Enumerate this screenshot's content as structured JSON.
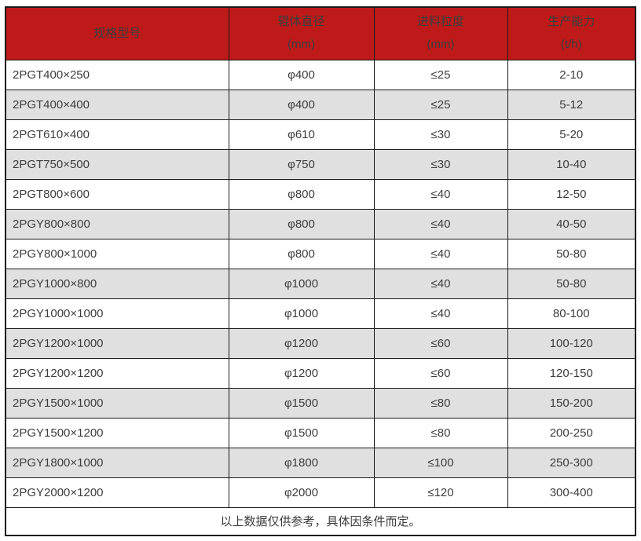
{
  "colors": {
    "header_bg": "#be1a1a",
    "header_text": "#ffffff",
    "stripe_bg": "#e0e0e0",
    "row_bg": "#ffffff",
    "border": "#1a1a1a",
    "body_text": "#3d3d3d"
  },
  "header": {
    "col0": {
      "line1": "规格型号",
      "line2": ""
    },
    "col1": {
      "line1": "辊体直径",
      "line2": "(mm)"
    },
    "col2": {
      "line1": "进料粒度",
      "line2": "(mm)"
    },
    "col3": {
      "line1": "生产能力",
      "line2": "(t/h)"
    }
  },
  "footer_note": "以上数据仅供参考，具体因条件而定。",
  "chart_data": {
    "type": "table",
    "title": "",
    "columns": [
      "规格型号",
      "辊体直径 (mm)",
      "进料粒度 (mm)",
      "生产能力 (t/h)"
    ],
    "rows": [
      [
        "2PGT400×250",
        "φ400",
        "≤25",
        "2-10"
      ],
      [
        "2PGT400×400",
        "φ400",
        "≤25",
        "5-12"
      ],
      [
        "2PGT610×400",
        "φ610",
        "≤30",
        "5-20"
      ],
      [
        "2PGT750×500",
        "φ750",
        "≤30",
        "10-40"
      ],
      [
        "2PGT800×600",
        "φ800",
        "≤40",
        "12-50"
      ],
      [
        "2PGY800×800",
        "φ800",
        "≤40",
        "40-50"
      ],
      [
        "2PGY800×1000",
        "φ800",
        "≤40",
        "50-80"
      ],
      [
        "2PGY1000×800",
        "φ1000",
        "≤40",
        "50-80"
      ],
      [
        "2PGY1000×1000",
        "φ1000",
        "≤40",
        "80-100"
      ],
      [
        "2PGY1200×1000",
        "φ1200",
        "≤60",
        "100-120"
      ],
      [
        "2PGY1200×1200",
        "φ1200",
        "≤60",
        "120-150"
      ],
      [
        "2PGY1500×1000",
        "φ1500",
        "≤80",
        "150-200"
      ],
      [
        "2PGY1500×1200",
        "φ1500",
        "≤80",
        "200-250"
      ],
      [
        "2PGY1800×1000",
        "φ1800",
        "≤100",
        "250-300"
      ],
      [
        "2PGY2000×1200",
        "φ2000",
        "≤120",
        "300-400"
      ]
    ],
    "footnote": "以上数据仅供参考，具体因条件而定。",
    "layout": {
      "striped_rows": "even",
      "header_position": "top",
      "grid": true
    }
  }
}
